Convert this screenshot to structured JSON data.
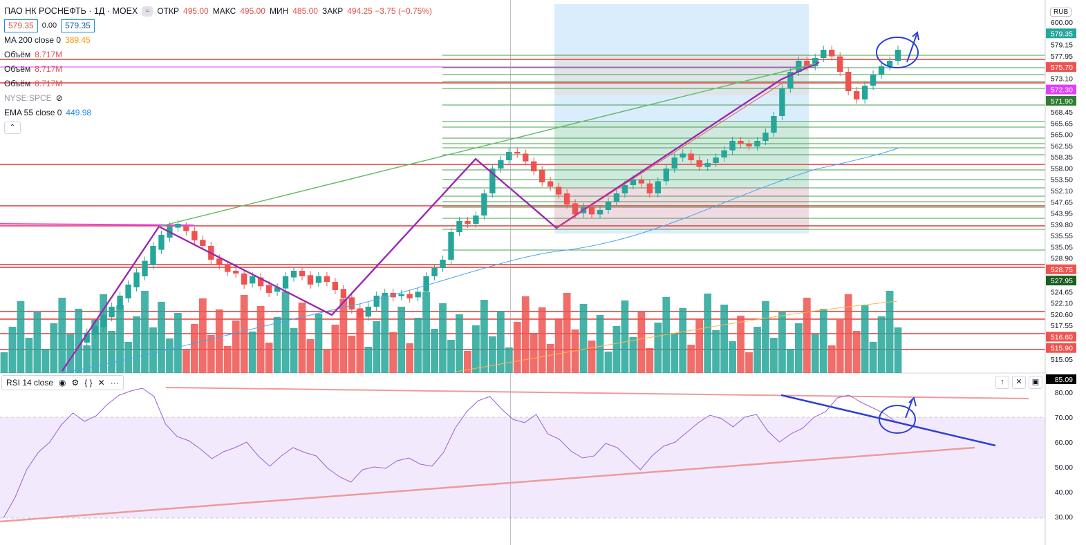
{
  "header": {
    "symbol_title": "ПАО НК РОСНЕФТЬ · 1Д · MOEX",
    "badge": "≈",
    "ohlc": [
      {
        "k": "ОТКР",
        "v": "495.00"
      },
      {
        "k": "МАКС",
        "v": "495.00"
      },
      {
        "k": "МИН",
        "v": "485.00"
      },
      {
        "k": "ЗАКР",
        "v": "494.25 −3.75 (−0.75%)"
      }
    ],
    "bid": "579.35",
    "spread": "0.00",
    "ask": "579.35"
  },
  "indicators": {
    "ma200": {
      "label": "MA 200 close 0",
      "value": "389.45"
    },
    "volume_label": "Объём",
    "volume_value": "8.717M",
    "spce": "NYSE:SPCE",
    "ema55": {
      "label": "EMA 55 close 0",
      "value": "449.98"
    }
  },
  "rsi_pane": {
    "label": "RSI 14 close",
    "current": "85.09"
  },
  "currency": "RUB",
  "chart_data": {
    "type": "candlestick",
    "price_axis_ticks": [
      "600.00",
      "579.35",
      "579.15",
      "577.95",
      "575.70",
      "573.10",
      "572.30",
      "571.90",
      "568.45",
      "565.65",
      "565.00",
      "562.55",
      "558.35",
      "558.00",
      "553.50",
      "552.10",
      "547.65",
      "543.95",
      "539.80",
      "535.55",
      "535.05",
      "528.90",
      "528.75",
      "527.95",
      "524.65",
      "522.10",
      "520.60",
      "517.55",
      "516.60",
      "515.90",
      "515.05"
    ],
    "rsi_axis_ticks": [
      "80.00",
      "70.00",
      "60.00",
      "50.00",
      "40.00",
      "30.00"
    ],
    "candles": [
      [
        0,
        0
      ],
      [
        0,
        0
      ],
      [
        0,
        0
      ],
      [
        0,
        0
      ],
      [
        0,
        0
      ],
      [
        0,
        0
      ],
      [
        0,
        0
      ],
      [
        0,
        0
      ],
      [
        0,
        0
      ],
      [
        0,
        0
      ],
      [
        0.03,
        0.048
      ],
      [
        0.044,
        0.06
      ],
      [
        0.058,
        0.08
      ],
      [
        0.076,
        0.095
      ],
      [
        0.09,
        0.115
      ],
      [
        0.11,
        0.135
      ],
      [
        0.13,
        0.157
      ],
      [
        0.15,
        0.178
      ],
      [
        0.17,
        0.205
      ],
      [
        0.198,
        0.225
      ],
      [
        0.22,
        0.24
      ],
      [
        0.238,
        0.245
      ],
      [
        0.24,
        0.232
      ],
      [
        0.232,
        0.215
      ],
      [
        0.216,
        0.205
      ],
      [
        0.205,
        0.18
      ],
      [
        0.182,
        0.17
      ],
      [
        0.17,
        0.158
      ],
      [
        0.16,
        0.155
      ],
      [
        0.155,
        0.135
      ],
      [
        0.137,
        0.15
      ],
      [
        0.148,
        0.132
      ],
      [
        0.134,
        0.12
      ],
      [
        0.122,
        0.13
      ],
      [
        0.128,
        0.15
      ],
      [
        0.148,
        0.16
      ],
      [
        0.16,
        0.15
      ],
      [
        0.152,
        0.135
      ],
      [
        0.138,
        0.15
      ],
      [
        0.15,
        0.14
      ],
      [
        0.14,
        0.125
      ],
      [
        0.127,
        0.11
      ],
      [
        0.112,
        0.09
      ],
      [
        0.092,
        0.075
      ],
      [
        0.077,
        0.095
      ],
      [
        0.095,
        0.115
      ],
      [
        0.115,
        0.12
      ],
      [
        0.12,
        0.112
      ],
      [
        0.114,
        0.118
      ],
      [
        0.118,
        0.11
      ],
      [
        0.112,
        0.122
      ],
      [
        0.122,
        0.15
      ],
      [
        0.15,
        0.165
      ],
      [
        0.165,
        0.18
      ],
      [
        0.18,
        0.23
      ],
      [
        0.23,
        0.25
      ],
      [
        0.25,
        0.245
      ],
      [
        0.245,
        0.26
      ],
      [
        0.26,
        0.3
      ],
      [
        0.3,
        0.345
      ],
      [
        0.345,
        0.36
      ],
      [
        0.36,
        0.375
      ],
      [
        0.375,
        0.372
      ],
      [
        0.372,
        0.358
      ],
      [
        0.358,
        0.34
      ],
      [
        0.342,
        0.32
      ],
      [
        0.322,
        0.312
      ],
      [
        0.312,
        0.298
      ],
      [
        0.3,
        0.28
      ],
      [
        0.282,
        0.262
      ],
      [
        0.264,
        0.275
      ],
      [
        0.275,
        0.262
      ],
      [
        0.262,
        0.27
      ],
      [
        0.27,
        0.285
      ],
      [
        0.285,
        0.3
      ],
      [
        0.3,
        0.315
      ],
      [
        0.315,
        0.325
      ],
      [
        0.325,
        0.318
      ],
      [
        0.318,
        0.3
      ],
      [
        0.3,
        0.322
      ],
      [
        0.322,
        0.345
      ],
      [
        0.345,
        0.365
      ],
      [
        0.365,
        0.372
      ],
      [
        0.372,
        0.36
      ],
      [
        0.36,
        0.348
      ],
      [
        0.348,
        0.355
      ],
      [
        0.355,
        0.365
      ],
      [
        0.365,
        0.378
      ],
      [
        0.378,
        0.395
      ],
      [
        0.395,
        0.39
      ],
      [
        0.39,
        0.385
      ],
      [
        0.385,
        0.395
      ],
      [
        0.395,
        0.41
      ],
      [
        0.41,
        0.44
      ],
      [
        0.44,
        0.49
      ],
      [
        0.49,
        0.52
      ],
      [
        0.52,
        0.54
      ],
      [
        0.54,
        0.53
      ],
      [
        0.53,
        0.545
      ],
      [
        0.545,
        0.56
      ],
      [
        0.56,
        0.548
      ],
      [
        0.548,
        0.52
      ],
      [
        0.52,
        0.485
      ],
      [
        0.485,
        0.47
      ],
      [
        0.47,
        0.495
      ],
      [
        0.495,
        0.515
      ],
      [
        0.515,
        0.53
      ],
      [
        0.53,
        0.54
      ],
      [
        0.54,
        0.56
      ]
    ]
  }
}
